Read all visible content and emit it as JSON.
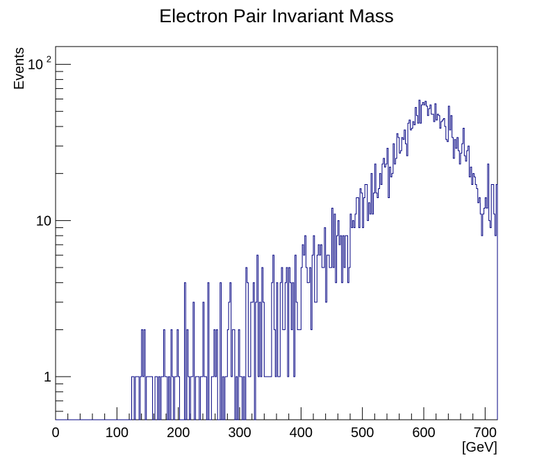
{
  "chart_data": {
    "type": "histogram",
    "title": "Electron Pair Invariant Mass",
    "xlabel": "[GeV]",
    "ylabel": "Events",
    "y_scale": "log",
    "xlim": [
      0,
      720
    ],
    "ylim": [
      0.53,
      130
    ],
    "bin_width": 2,
    "line_color": "#000080",
    "grid": false,
    "legend": "none",
    "x_ticks": [
      "0",
      "100",
      "200",
      "300",
      "400",
      "500",
      "600",
      "700"
    ],
    "y_ticks": [
      {
        "value": 1,
        "label": "1"
      },
      {
        "value": 10,
        "label": "10"
      },
      {
        "value": 100,
        "label": "10",
        "sup": "2"
      }
    ],
    "anchors": [
      [
        120,
        0.6
      ],
      [
        200,
        0.7
      ],
      [
        250,
        1.0
      ],
      [
        300,
        1.4
      ],
      [
        350,
        2.2
      ],
      [
        400,
        4.0
      ],
      [
        450,
        7.0
      ],
      [
        500,
        14
      ],
      [
        550,
        27
      ],
      [
        580,
        40
      ],
      [
        600,
        52
      ],
      [
        620,
        47
      ],
      [
        640,
        37
      ],
      [
        660,
        27
      ],
      [
        680,
        20
      ],
      [
        700,
        14
      ],
      [
        720,
        11
      ]
    ]
  }
}
